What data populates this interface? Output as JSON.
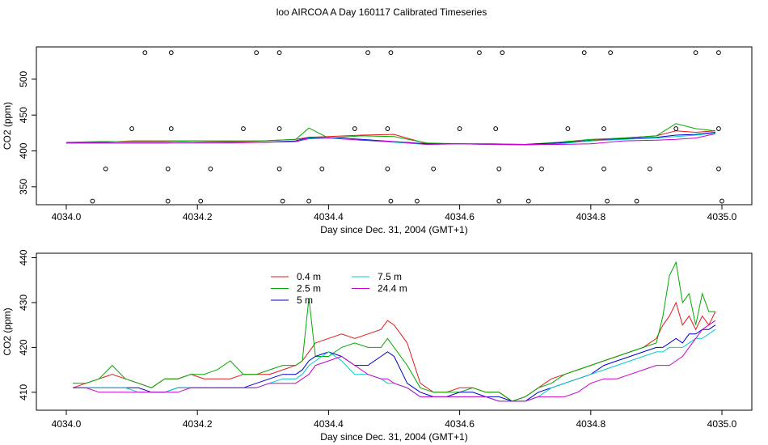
{
  "figure_title": "loo AIRCOA A  Day 160117  Calibrated Timeseries",
  "chart_data": [
    {
      "type": "line",
      "panel": "top",
      "xlabel": "Day since Dec. 31, 2004 (GMT+1)",
      "ylabel": "CO2 (ppm)",
      "xlim": [
        4034.0,
        4035.0
      ],
      "ylim": [
        325,
        545
      ],
      "xticks": [
        4034.0,
        4034.2,
        4034.4,
        4034.6,
        4034.8,
        4035.0
      ],
      "yticks": [
        350,
        400,
        450,
        500
      ],
      "xtick_labels": [
        "4034.0",
        "4034.2",
        "4034.4",
        "4034.6",
        "4034.8",
        "4035.0"
      ],
      "ytick_labels": [
        "350",
        "400",
        "450",
        "500"
      ],
      "x": [
        4034.0,
        4034.05,
        4034.1,
        4034.15,
        4034.2,
        4034.25,
        4034.3,
        4034.35,
        4034.37,
        4034.4,
        4034.45,
        4034.5,
        4034.55,
        4034.6,
        4034.65,
        4034.7,
        4034.75,
        4034.8,
        4034.85,
        4034.9,
        4034.93,
        4034.96,
        4034.99
      ],
      "series": [
        {
          "name": "0.4 m",
          "color": "#e41a1c",
          "values": [
            411,
            412,
            414,
            414,
            414,
            413,
            414,
            416,
            419,
            420,
            422,
            423,
            410,
            410,
            410,
            409,
            411,
            415,
            418,
            421,
            428,
            426,
            428
          ]
        },
        {
          "name": "2.5 m",
          "color": "#00aa00",
          "values": [
            412,
            413,
            413,
            413,
            414,
            414,
            414,
            416,
            432,
            418,
            421,
            420,
            411,
            410,
            410,
            409,
            412,
            416,
            418,
            421,
            438,
            431,
            428
          ]
        },
        {
          "name": "5 m",
          "color": "#0000cc",
          "values": [
            411,
            411,
            411,
            411,
            412,
            412,
            412,
            414,
            419,
            419,
            416,
            413,
            410,
            410,
            409,
            409,
            411,
            414,
            417,
            419,
            422,
            423,
            426
          ]
        },
        {
          "name": "7.5 m",
          "color": "#00cccc",
          "values": [
            411,
            411,
            411,
            411,
            412,
            412,
            412,
            413,
            418,
            419,
            415,
            412,
            409,
            410,
            409,
            408,
            410,
            414,
            416,
            418,
            420,
            422,
            425
          ]
        },
        {
          "name": "24.4 m",
          "color": "#cc00cc",
          "values": [
            411,
            411,
            411,
            411,
            411,
            411,
            412,
            413,
            417,
            418,
            415,
            413,
            409,
            410,
            409,
            409,
            409,
            410,
            414,
            415,
            416,
            418,
            424
          ]
        }
      ],
      "markers": {
        "symbol": "open-circle",
        "rows": [
          {
            "y": 537,
            "x": [
              4034.12,
              4034.16,
              4034.29,
              4034.325,
              4034.46,
              4034.495,
              4034.63,
              4034.665,
              4034.79,
              4034.83,
              4034.96,
              4034.995
            ]
          },
          {
            "y": 431,
            "x": [
              4034.1,
              4034.16,
              4034.27,
              4034.325,
              4034.44,
              4034.49,
              4034.6,
              4034.655,
              4034.765,
              4034.82,
              4034.93,
              4034.995
            ]
          },
          {
            "y": 375,
            "x": [
              4034.06,
              4034.155,
              4034.22,
              4034.325,
              4034.39,
              4034.49,
              4034.56,
              4034.66,
              4034.725,
              4034.82,
              4034.89,
              4034.995
            ]
          },
          {
            "y": 330,
            "x": [
              4034.04,
              4034.155,
              4034.205,
              4034.33,
              4034.37,
              4034.495,
              4034.535,
              4034.66,
              4034.705,
              4034.825,
              4034.87,
              4035.0
            ]
          }
        ]
      }
    },
    {
      "type": "line",
      "panel": "bottom",
      "xlabel": "Day since Dec. 31, 2004 (GMT+1)",
      "ylabel": "CO2 (ppm)",
      "xlim": [
        4034.0,
        4035.0
      ],
      "ylim": [
        406,
        441
      ],
      "xticks": [
        4034.0,
        4034.2,
        4034.4,
        4034.6,
        4034.8,
        4035.0
      ],
      "yticks": [
        410,
        420,
        430,
        440
      ],
      "xtick_labels": [
        "4034.0",
        "4034.2",
        "4034.4",
        "4034.6",
        "4034.8",
        "4035.0"
      ],
      "ytick_labels": [
        "410",
        "420",
        "430",
        "440"
      ],
      "legend": {
        "placement": "top-left",
        "ncol": 2
      },
      "x": [
        4034.01,
        4034.03,
        4034.05,
        4034.07,
        4034.09,
        4034.11,
        4034.13,
        4034.15,
        4034.17,
        4034.19,
        4034.21,
        4034.23,
        4034.25,
        4034.27,
        4034.29,
        4034.31,
        4034.33,
        4034.35,
        4034.36,
        4034.37,
        4034.38,
        4034.4,
        4034.42,
        4034.44,
        4034.46,
        4034.48,
        4034.49,
        4034.5,
        4034.52,
        4034.54,
        4034.56,
        4034.58,
        4034.6,
        4034.62,
        4034.64,
        4034.66,
        4034.68,
        4034.7,
        4034.72,
        4034.74,
        4034.76,
        4034.78,
        4034.8,
        4034.82,
        4034.84,
        4034.86,
        4034.88,
        4034.9,
        4034.91,
        4034.92,
        4034.93,
        4034.94,
        4034.95,
        4034.96,
        4034.97,
        4034.98,
        4034.99
      ],
      "series": [
        {
          "name": "0.4 m",
          "color": "#e41a1c",
          "values": [
            411,
            412,
            413,
            414,
            413,
            412,
            411,
            413,
            413,
            414,
            413,
            413,
            413,
            414,
            414,
            414,
            415,
            416,
            417,
            419,
            421,
            422,
            423,
            422,
            423,
            424,
            426,
            425,
            421,
            412,
            410,
            410,
            411,
            411,
            410,
            410,
            408,
            409,
            411,
            413,
            414,
            415,
            416,
            417,
            418,
            419,
            420,
            422,
            425,
            427,
            430,
            425,
            427,
            424,
            427,
            425,
            428
          ]
        },
        {
          "name": "2.5 m",
          "color": "#00aa00",
          "values": [
            412,
            412,
            413,
            416,
            413,
            412,
            411,
            413,
            413,
            414,
            414,
            415,
            417,
            414,
            414,
            415,
            416,
            416,
            417,
            431,
            418,
            418,
            420,
            421,
            420,
            420,
            422,
            420,
            416,
            411,
            410,
            410,
            410,
            411,
            410,
            410,
            408,
            409,
            411,
            412,
            414,
            415,
            416,
            417,
            418,
            419,
            420,
            421,
            427,
            436,
            439,
            430,
            432,
            425,
            432,
            428,
            428
          ]
        },
        {
          "name": "5 m",
          "color": "#0000cc",
          "values": [
            411,
            411,
            411,
            411,
            411,
            411,
            410,
            410,
            411,
            411,
            411,
            411,
            411,
            411,
            412,
            413,
            414,
            414,
            415,
            417,
            418,
            419,
            418,
            416,
            416,
            418,
            419,
            418,
            412,
            410,
            409,
            409,
            410,
            410,
            409,
            409,
            408,
            408,
            410,
            411,
            412,
            413,
            414,
            416,
            417,
            418,
            419,
            420,
            420,
            421,
            422,
            421,
            423,
            423,
            424,
            424,
            425
          ]
        },
        {
          "name": "7.5 m",
          "color": "#00cccc",
          "values": [
            411,
            411,
            411,
            411,
            411,
            410,
            410,
            410,
            411,
            411,
            411,
            411,
            411,
            411,
            411,
            412,
            413,
            413,
            414,
            416,
            417,
            419,
            417,
            414,
            414,
            413,
            412,
            412,
            411,
            409,
            409,
            409,
            409,
            409,
            409,
            408,
            408,
            408,
            409,
            411,
            412,
            413,
            414,
            415,
            416,
            417,
            418,
            419,
            419,
            420,
            420,
            420,
            421,
            422,
            422,
            423,
            424
          ]
        },
        {
          "name": "24.4 m",
          "color": "#cc00cc",
          "values": [
            411,
            411,
            410,
            410,
            410,
            410,
            410,
            410,
            410,
            411,
            411,
            411,
            411,
            411,
            411,
            412,
            412,
            412,
            413,
            414,
            416,
            417,
            418,
            416,
            414,
            413,
            413,
            412,
            411,
            409,
            409,
            409,
            409,
            409,
            409,
            408,
            408,
            408,
            409,
            409,
            409,
            410,
            412,
            413,
            413,
            414,
            415,
            416,
            416,
            416,
            417,
            418,
            420,
            422,
            424,
            425,
            426
          ]
        }
      ]
    }
  ]
}
